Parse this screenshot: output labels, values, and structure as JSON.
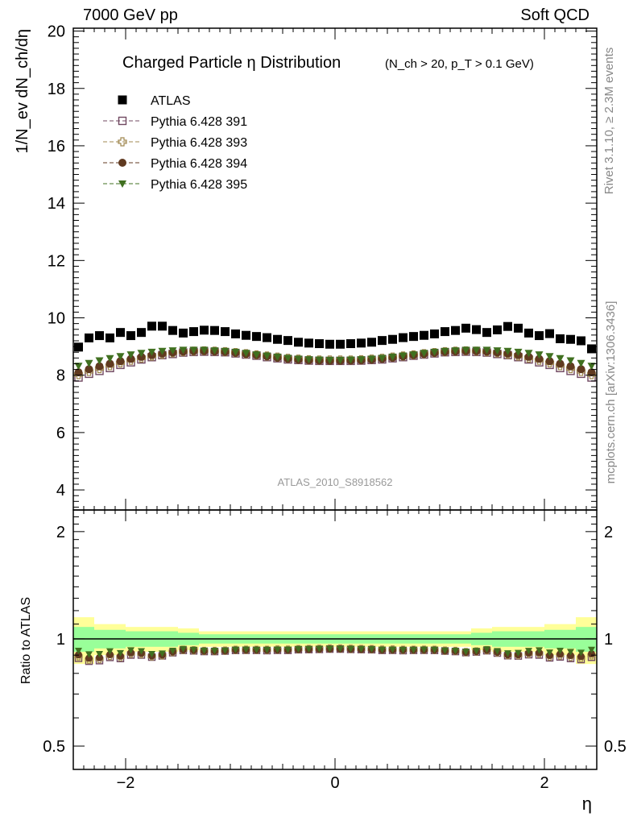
{
  "header": {
    "left": "7000 GeV pp",
    "right": "Soft QCD"
  },
  "side_labels": {
    "rivet": "Rivet 3.1.10, ≥ 2.3M events",
    "mcplots": "mcplots.cern.ch [arXiv:1306.3436]"
  },
  "chart_data": {
    "type": "scatter",
    "title": "Charged Particle η Distribution",
    "subtitle": "(N_ch > 20, p_T > 0.1 GeV)",
    "xlabel": "η",
    "ylabel": "1/N_ev dN_ch/dη",
    "ratio_ylabel": "Ratio to ATLAS",
    "watermark": "ATLAS_2010_S8918562",
    "xlim": [
      -2.5,
      2.5
    ],
    "ylim": [
      3.3,
      20.1
    ],
    "ratio_ylim": [
      0.43,
      2.3
    ],
    "ratio_scale": "log",
    "x_ticks": [
      "−2",
      "0",
      "2"
    ],
    "y_ticks": [
      "4",
      "6",
      "8",
      "10",
      "12",
      "14",
      "16",
      "18",
      "20"
    ],
    "ratio_ticks": [
      "0.5",
      "1",
      "2"
    ],
    "legend_position": "top-left",
    "x": [
      -2.45,
      -2.35,
      -2.25,
      -2.15,
      -2.05,
      -1.95,
      -1.85,
      -1.75,
      -1.65,
      -1.55,
      -1.45,
      -1.35,
      -1.25,
      -1.15,
      -1.05,
      -0.95,
      -0.85,
      -0.75,
      -0.65,
      -0.55,
      -0.45,
      -0.35,
      -0.25,
      -0.15,
      -0.05,
      0.05,
      0.15,
      0.25,
      0.35,
      0.45,
      0.55,
      0.65,
      0.75,
      0.85,
      0.95,
      1.05,
      1.15,
      1.25,
      1.35,
      1.45,
      1.55,
      1.65,
      1.75,
      1.85,
      1.95,
      2.05,
      2.15,
      2.25,
      2.35,
      2.45
    ],
    "series": [
      {
        "name": "ATLAS",
        "color": "#000000",
        "marker": "square-filled",
        "values": [
          8.98,
          9.3,
          9.38,
          9.3,
          9.49,
          9.38,
          9.49,
          9.71,
          9.71,
          9.56,
          9.47,
          9.52,
          9.57,
          9.56,
          9.52,
          9.44,
          9.39,
          9.35,
          9.31,
          9.25,
          9.21,
          9.15,
          9.12,
          9.1,
          9.08,
          9.08,
          9.1,
          9.12,
          9.15,
          9.21,
          9.25,
          9.31,
          9.35,
          9.39,
          9.44,
          9.52,
          9.56,
          9.64,
          9.59,
          9.49,
          9.58,
          9.7,
          9.64,
          9.47,
          9.38,
          9.45,
          9.27,
          9.25,
          9.2,
          8.92
        ]
      },
      {
        "name": "Pythia 6.428 391",
        "color": "#704860",
        "marker": "square-open",
        "values": [
          7.92,
          8.05,
          8.15,
          8.25,
          8.36,
          8.45,
          8.55,
          8.63,
          8.7,
          8.74,
          8.79,
          8.81,
          8.82,
          8.81,
          8.8,
          8.76,
          8.72,
          8.68,
          8.63,
          8.59,
          8.55,
          8.53,
          8.51,
          8.5,
          8.5,
          8.5,
          8.5,
          8.51,
          8.53,
          8.55,
          8.59,
          8.63,
          8.68,
          8.72,
          8.76,
          8.8,
          8.81,
          8.82,
          8.81,
          8.79,
          8.74,
          8.7,
          8.63,
          8.55,
          8.45,
          8.36,
          8.25,
          8.15,
          8.05,
          7.92
        ]
      },
      {
        "name": "Pythia 6.428 393",
        "color": "#a08850",
        "marker": "cross-open",
        "values": [
          8.02,
          8.13,
          8.23,
          8.33,
          8.43,
          8.52,
          8.6,
          8.67,
          8.73,
          8.78,
          8.82,
          8.84,
          8.85,
          8.84,
          8.82,
          8.79,
          8.75,
          8.71,
          8.67,
          8.63,
          8.59,
          8.56,
          8.54,
          8.53,
          8.53,
          8.53,
          8.53,
          8.54,
          8.56,
          8.59,
          8.63,
          8.67,
          8.71,
          8.75,
          8.79,
          8.82,
          8.84,
          8.85,
          8.84,
          8.82,
          8.78,
          8.73,
          8.67,
          8.6,
          8.52,
          8.43,
          8.33,
          8.23,
          8.13,
          8.02
        ]
      },
      {
        "name": "Pythia 6.428 394",
        "color": "#603a20",
        "marker": "circle-filled",
        "values": [
          8.1,
          8.21,
          8.31,
          8.4,
          8.49,
          8.57,
          8.64,
          8.7,
          8.75,
          8.79,
          8.82,
          8.84,
          8.84,
          8.83,
          8.81,
          8.78,
          8.74,
          8.7,
          8.66,
          8.61,
          8.57,
          8.54,
          8.52,
          8.51,
          8.5,
          8.5,
          8.51,
          8.52,
          8.54,
          8.57,
          8.61,
          8.66,
          8.7,
          8.74,
          8.78,
          8.81,
          8.83,
          8.84,
          8.84,
          8.82,
          8.79,
          8.75,
          8.7,
          8.64,
          8.57,
          8.49,
          8.4,
          8.31,
          8.21,
          8.1
        ]
      },
      {
        "name": "Pythia 6.428 395",
        "color": "#407020",
        "marker": "triangle-down-filled",
        "values": [
          8.32,
          8.42,
          8.51,
          8.59,
          8.66,
          8.72,
          8.77,
          8.81,
          8.84,
          8.86,
          8.88,
          8.88,
          8.88,
          8.86,
          8.84,
          8.81,
          8.77,
          8.72,
          8.68,
          8.64,
          8.6,
          8.57,
          8.55,
          8.54,
          8.53,
          8.53,
          8.54,
          8.55,
          8.57,
          8.6,
          8.64,
          8.68,
          8.72,
          8.77,
          8.81,
          8.84,
          8.86,
          8.88,
          8.88,
          8.88,
          8.86,
          8.84,
          8.81,
          8.77,
          8.72,
          8.66,
          8.59,
          8.51,
          8.42,
          8.32
        ]
      }
    ],
    "ratio_bands": {
      "edges": [
        -2.5,
        -2.3,
        -2.0,
        -1.5,
        -1.3,
        1.3,
        1.5,
        2.0,
        2.3,
        2.5
      ],
      "yellow_half_width": [
        0.15,
        0.1,
        0.08,
        0.07,
        0.05,
        0.07,
        0.08,
        0.1,
        0.15
      ],
      "green_half_width": [
        0.08,
        0.06,
        0.05,
        0.04,
        0.03,
        0.04,
        0.05,
        0.06,
        0.08
      ],
      "yellow_color": "#ffff99",
      "green_color": "#99ff99"
    }
  }
}
